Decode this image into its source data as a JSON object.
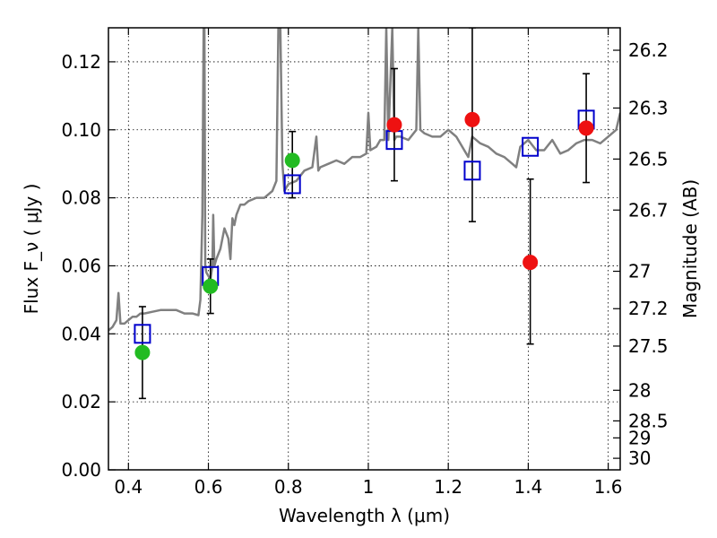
{
  "chart_data": {
    "type": "scatter",
    "title": "",
    "xlabel": "Wavelength  λ (μm)",
    "ylabel": "Flux  F_ν  ( μJy )",
    "y2label": "Magnitude (AB)",
    "xlim": [
      0.35,
      1.63
    ],
    "ylim": [
      0.0,
      0.13
    ],
    "grid": true,
    "legend": "none",
    "x_ticks": [
      {
        "value": 0.4,
        "label": "0.4"
      },
      {
        "value": 0.6,
        "label": "0.6"
      },
      {
        "value": 0.8,
        "label": "0.8"
      },
      {
        "value": 1.0,
        "label": "1"
      },
      {
        "value": 1.2,
        "label": "1.2"
      },
      {
        "value": 1.4,
        "label": "1.4"
      },
      {
        "value": 1.6,
        "label": "1.6"
      }
    ],
    "y_ticks": [
      {
        "value": 0.0,
        "label": "0.00"
      },
      {
        "value": 0.02,
        "label": "0.02"
      },
      {
        "value": 0.04,
        "label": "0.04"
      },
      {
        "value": 0.06,
        "label": "0.06"
      },
      {
        "value": 0.08,
        "label": "0.08"
      },
      {
        "value": 0.1,
        "label": "0.10"
      },
      {
        "value": 0.12,
        "label": "0.12"
      }
    ],
    "y2_ticks": [
      {
        "flux": 0.1234,
        "label": "26.2"
      },
      {
        "flux": 0.1064,
        "label": "26.3"
      },
      {
        "flux": 0.0914,
        "label": "26.5"
      },
      {
        "flux": 0.0764,
        "label": "26.7"
      },
      {
        "flux": 0.0584,
        "label": "27"
      },
      {
        "flux": 0.0474,
        "label": "27.2"
      },
      {
        "flux": 0.0364,
        "label": "27.5"
      },
      {
        "flux": 0.0234,
        "label": "28"
      },
      {
        "flux": 0.0144,
        "label": "28.5"
      },
      {
        "flux": 0.0094,
        "label": "29"
      },
      {
        "flux": 0.0034,
        "label": "30"
      }
    ],
    "series": [
      {
        "kind": "line",
        "color": "#808080",
        "x": [
          0.35,
          0.36,
          0.37,
          0.375,
          0.38,
          0.39,
          0.4,
          0.41,
          0.42,
          0.43,
          0.44,
          0.46,
          0.48,
          0.5,
          0.52,
          0.54,
          0.56,
          0.575,
          0.58,
          0.585,
          0.588,
          0.59,
          0.592,
          0.595,
          0.6,
          0.605,
          0.61,
          0.612,
          0.615,
          0.62,
          0.63,
          0.64,
          0.65,
          0.655,
          0.66,
          0.665,
          0.67,
          0.68,
          0.69,
          0.7,
          0.72,
          0.74,
          0.76,
          0.77,
          0.775,
          0.78,
          0.785,
          0.79,
          0.8,
          0.82,
          0.84,
          0.86,
          0.87,
          0.875,
          0.88,
          0.9,
          0.92,
          0.94,
          0.96,
          0.98,
          0.995,
          1.0,
          1.005,
          1.02,
          1.03,
          1.04,
          1.045,
          1.05,
          1.06,
          1.065,
          1.07,
          1.08,
          1.1,
          1.12,
          1.125,
          1.13,
          1.14,
          1.16,
          1.18,
          1.2,
          1.22,
          1.24,
          1.25,
          1.26,
          1.28,
          1.3,
          1.32,
          1.34,
          1.36,
          1.37,
          1.38,
          1.4,
          1.42,
          1.44,
          1.46,
          1.48,
          1.5,
          1.52,
          1.54,
          1.56,
          1.58,
          1.6,
          1.62,
          1.63
        ],
        "y": [
          0.041,
          0.042,
          0.044,
          0.052,
          0.043,
          0.043,
          0.044,
          0.045,
          0.045,
          0.046,
          0.046,
          0.0465,
          0.047,
          0.047,
          0.047,
          0.046,
          0.046,
          0.0455,
          0.05,
          0.075,
          0.13,
          0.13,
          0.06,
          0.058,
          0.057,
          0.056,
          0.06,
          0.075,
          0.06,
          0.062,
          0.065,
          0.071,
          0.068,
          0.062,
          0.074,
          0.072,
          0.075,
          0.078,
          0.078,
          0.079,
          0.08,
          0.08,
          0.082,
          0.085,
          0.13,
          0.13,
          0.09,
          0.082,
          0.084,
          0.085,
          0.088,
          0.089,
          0.098,
          0.088,
          0.089,
          0.09,
          0.091,
          0.09,
          0.092,
          0.092,
          0.093,
          0.105,
          0.094,
          0.095,
          0.097,
          0.097,
          0.13,
          0.097,
          0.13,
          0.097,
          0.098,
          0.098,
          0.097,
          0.1,
          0.13,
          0.1,
          0.099,
          0.098,
          0.098,
          0.1,
          0.098,
          0.094,
          0.092,
          0.098,
          0.096,
          0.095,
          0.093,
          0.092,
          0.09,
          0.089,
          0.095,
          0.097,
          0.094,
          0.094,
          0.097,
          0.093,
          0.094,
          0.096,
          0.097,
          0.097,
          0.096,
          0.098,
          0.1,
          0.105
        ]
      },
      {
        "kind": "errorbar",
        "color": "#000000",
        "x": [
          0.435,
          0.605,
          0.81,
          1.065,
          1.26,
          1.405,
          1.545
        ],
        "y": [
          0.0345,
          0.054,
          0.091,
          0.1015,
          0.103,
          0.061,
          0.1005
        ],
        "yerr_low": [
          0.0135,
          0.008,
          0.011,
          0.0165,
          0.03,
          0.024,
          0.016
        ],
        "yerr_high": [
          0.0135,
          0.008,
          0.0085,
          0.0165,
          0.027,
          0.0245,
          0.016
        ]
      },
      {
        "kind": "square",
        "color": "#0000cc",
        "x": [
          0.435,
          0.605,
          0.81,
          1.065,
          1.26,
          1.405,
          1.545
        ],
        "y": [
          0.04,
          0.057,
          0.084,
          0.097,
          0.088,
          0.095,
          0.103
        ]
      },
      {
        "kind": "circle",
        "color": "#22bb22",
        "x": [
          0.435,
          0.605,
          0.81
        ],
        "y": [
          0.0345,
          0.054,
          0.091
        ]
      },
      {
        "kind": "circle",
        "color": "#ee1111",
        "x": [
          1.065,
          1.26,
          1.405,
          1.545
        ],
        "y": [
          0.1015,
          0.103,
          0.061,
          0.1005
        ]
      }
    ]
  }
}
